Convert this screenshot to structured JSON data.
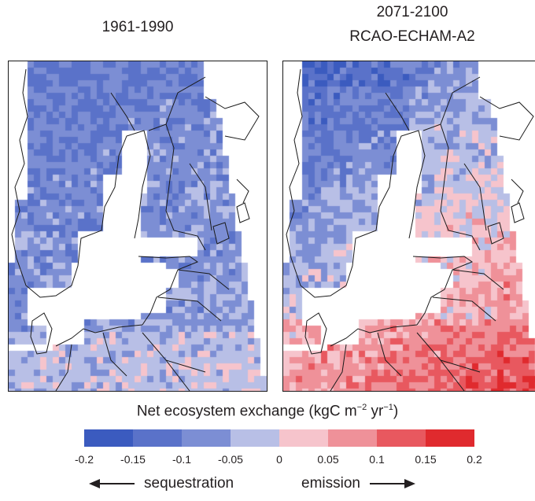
{
  "panels": [
    {
      "title_lines": [
        "1961-1990"
      ]
    },
    {
      "title_lines": [
        "2071-2100",
        "RCAO-ECHAM-A2"
      ]
    }
  ],
  "legend": {
    "title_prefix": "Net ecosystem exchange (kgC m",
    "title_exp1": "−2",
    "title_mid": " yr",
    "title_exp2": "−1",
    "title_suffix": ")",
    "ticks": [
      "-0.2",
      "-0.15",
      "-0.1",
      "-0.05",
      "0",
      "0.05",
      "0.1",
      "0.15",
      "0.2"
    ],
    "colors": [
      "#3b5bbf",
      "#5a72c9",
      "#7c8ed4",
      "#b8bfe6",
      "#f6c4cc",
      "#ef9199",
      "#e8585f",
      "#e02a2e"
    ],
    "left_label": "sequestration",
    "right_label": "emission"
  },
  "map_colors": {
    "land_outline": "#1a1a1a",
    "sea": "#ffffff"
  }
}
